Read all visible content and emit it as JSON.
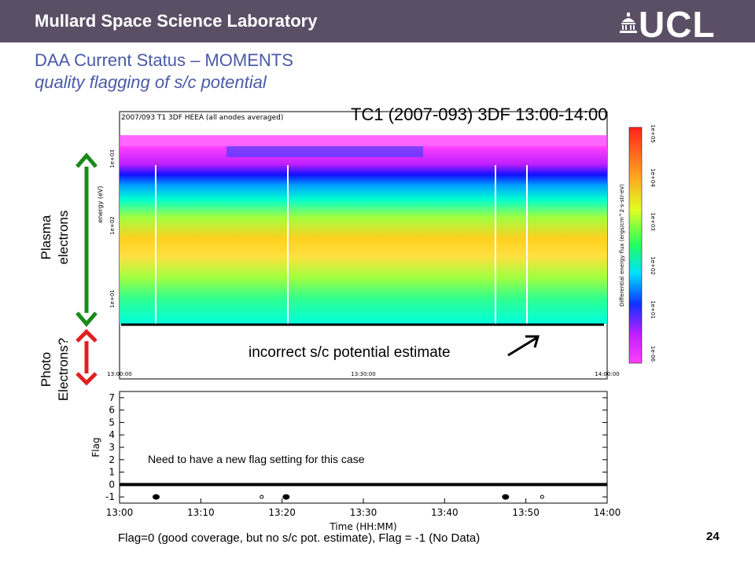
{
  "header": {
    "lab": "Mullard Space Science Laboratory",
    "logo": "UCL",
    "bg_color": "#5b4f66",
    "title_color": "#4a5aa8"
  },
  "slide": {
    "title": "DAA Current Status – MOMENTS",
    "subtitle": "quality flagging of s/c potential",
    "page": "24"
  },
  "spectrogram": {
    "heading": "TC1 (2007-093) 3DF 13:00-14:00",
    "plot_title": "2007/093 T1 3DF HEEA (all anodes averaged)",
    "ylabel": "energy (eV)",
    "yticks": [
      "1e+03",
      "1e+02",
      "1e+01"
    ],
    "xticks": [
      "13:00:00",
      "13:30:00",
      "14:00:00"
    ],
    "colorbar_label": "Differential energy flux (ergs/cm^2-s-str-eV)",
    "colorbar_ticks": [
      "1e+05",
      "1e+04",
      "1e+03",
      "1e+02",
      "1e+01",
      "1e-06"
    ]
  },
  "annotations": {
    "plasma": "Plasma electrons",
    "plasma_l1": "Plasma",
    "plasma_l2": "electrons",
    "photo_l1": "Photo",
    "photo_l2": "Electrons?",
    "incorrect": "incorrect s/c potential estimate",
    "need": "Need to have a new flag setting for this case",
    "footer": "Flag=0 (good coverage, but no s/c pot. estimate), Flag = -1 (No Data)",
    "arrow_green": "#1a8a1a",
    "arrow_red": "#e02020"
  },
  "chart_data": {
    "type": "scatter",
    "title": "",
    "xlabel": "Time (HH:MM)",
    "ylabel": "Flag",
    "x_ticks": [
      "13:00",
      "13:10",
      "13:20",
      "13:30",
      "13:40",
      "13:50",
      "14:00"
    ],
    "y_ticks": [
      "7",
      "6",
      "5",
      "4",
      "3",
      "2",
      "1",
      "0",
      "-1"
    ],
    "xlim": [
      "13:00",
      "14:00"
    ],
    "ylim": [
      -1.5,
      7.5
    ],
    "series": [
      {
        "values": [
          {
            "x": "13:00",
            "y": 0
          },
          {
            "x": "14:00",
            "y": 0
          }
        ],
        "style": "continuous"
      },
      {
        "values": [
          {
            "x": "13:04.5",
            "y": -1
          },
          {
            "x": "13:17.5",
            "y": -1
          },
          {
            "x": "13:20.5",
            "y": -1
          },
          {
            "x": "13:47.5",
            "y": -1
          },
          {
            "x": "13:52",
            "y": -1
          }
        ],
        "style": "points"
      }
    ]
  }
}
